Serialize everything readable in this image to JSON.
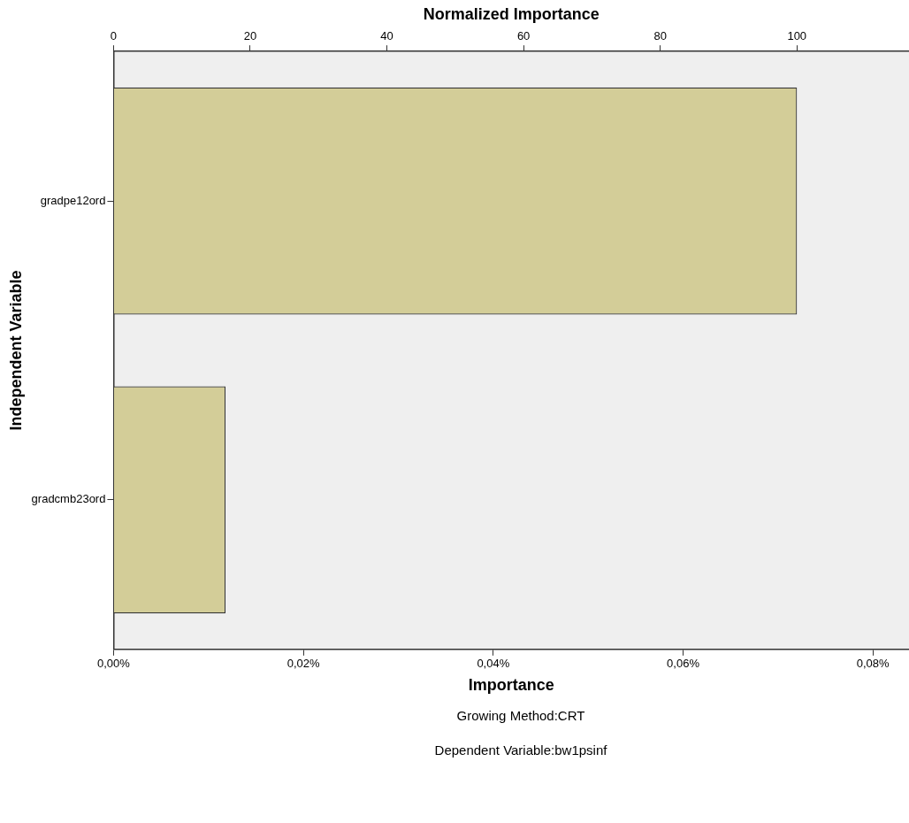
{
  "chart_data": {
    "type": "bar",
    "orientation": "horizontal",
    "xlabel": "Importance",
    "x2label": "Normalized Importance",
    "ylabel": "Independent Variable",
    "categories": [
      "gradpe12ord",
      "gradcmb23ord"
    ],
    "values": [
      0.072,
      0.0118
    ],
    "color": "#d3cd98",
    "xlim": [
      0,
      0.0838
    ],
    "xticks": [
      {
        "value": 0,
        "label": "0,00%"
      },
      {
        "value": 0.02,
        "label": "0,02%"
      },
      {
        "value": 0.04,
        "label": "0,04%"
      },
      {
        "value": 0.06,
        "label": "0,06%"
      },
      {
        "value": 0.08,
        "label": "0,08%"
      }
    ],
    "x2lim": [
      0,
      116.4
    ],
    "x2ticks": [
      0,
      20,
      40,
      60,
      80,
      100
    ],
    "grid": false,
    "legend": false,
    "annotations": [
      "Growing Method:CRT",
      "Dependent Variable:bw1psinf"
    ]
  }
}
